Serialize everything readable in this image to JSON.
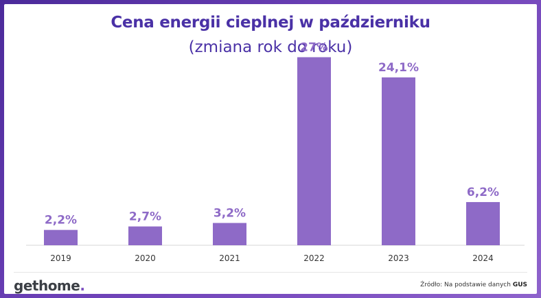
{
  "chart_data": {
    "type": "bar",
    "title": "Cena energii cieplnej w październiku",
    "subtitle": "(zmiana rok do roku)",
    "categories": [
      "2019",
      "2020",
      "2021",
      "2022",
      "2023",
      "2024"
    ],
    "values": [
      2.2,
      2.7,
      3.2,
      27,
      24.1,
      6.2
    ],
    "value_labels": [
      "2,2%",
      "2,7%",
      "3,2%",
      "27%",
      "24,1%",
      "6,2%"
    ],
    "ylim": [
      0,
      30
    ],
    "xlabel": "",
    "ylabel": "",
    "grid": false,
    "bar_color": "#8e6ac7"
  },
  "footer": {
    "logo_get": "get",
    "logo_home": "home",
    "logo_dot": ".",
    "source_prefix": "Źródło: Na podstawie danych ",
    "source_bold": "GUS"
  },
  "colors": {
    "title": "#4a31a6",
    "bar": "#8e6ac7"
  }
}
